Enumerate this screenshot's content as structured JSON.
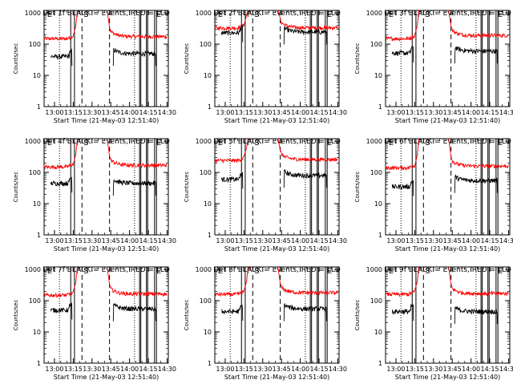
{
  "chart_data": {
    "type": "line",
    "shared": {
      "y_label": "Counts/sec",
      "x_label": "Start Time (21-May-03 12:51:40)",
      "x_ticks": [
        "13:00",
        "13:15",
        "13:30",
        "13:45",
        "14:00",
        "14:15",
        "14:30"
      ],
      "x_tick_minutes": [
        0,
        15,
        30,
        45,
        60,
        75,
        90
      ],
      "x_range_minutes": [
        -8.3,
        91
      ],
      "y_ticks": [
        "1",
        "10",
        "100",
        "1000"
      ],
      "y_tick_values": [
        1,
        10,
        100,
        1000
      ],
      "y_range": [
        1,
        1200
      ],
      "y_scale": "log",
      "x_origin": "13:00",
      "series_colors": {
        "events": "#000000",
        "lld": "#ff0000"
      },
      "marker_labels": [
        "E",
        "F",
        "S",
        "E"
      ],
      "marker_minutes": [
        -7.2,
        16,
        22,
        80
      ],
      "dotted_lines_minutes": [
        4,
        64
      ],
      "dashed_lines_minutes": [
        22,
        44
      ],
      "solid_lines_minutes": [
        13,
        16,
        68,
        69,
        73.5,
        74.5,
        80,
        81.5
      ]
    },
    "panels": [
      {
        "title": "Det 1f BLACK = Events, RED = LLD",
        "events_level": 40,
        "lld_level": 150,
        "events_post": 50,
        "lld_post": 175,
        "saa_start": 16,
        "saa_end": 44
      },
      {
        "title": "Det 2f BLACK = Events, RED = LLD",
        "events_level": 230,
        "lld_level": 330,
        "events_post": 245,
        "lld_post": 335,
        "saa_start": 16,
        "saa_end": 44
      },
      {
        "title": "Det 3f BLACK = Events, RED = LLD",
        "events_level": 52,
        "lld_level": 150,
        "events_post": 60,
        "lld_post": 190,
        "saa_start": 16,
        "saa_end": 44
      },
      {
        "title": "Det 4f BLACK = Events, RED = LLD",
        "events_level": 45,
        "lld_level": 150,
        "events_post": 45,
        "lld_post": 170,
        "saa_start": 16,
        "saa_end": 44
      },
      {
        "title": "Det 5f BLACK = Events, RED = LLD",
        "events_level": 60,
        "lld_level": 240,
        "events_post": 80,
        "lld_post": 260,
        "saa_start": 16,
        "saa_end": 44
      },
      {
        "title": "Det 6f BLACK = Events, RED = LLD",
        "events_level": 35,
        "lld_level": 140,
        "events_post": 55,
        "lld_post": 160,
        "saa_start": 16,
        "saa_end": 44
      },
      {
        "title": "Det 7f BLACK = Events, RED = LLD",
        "events_level": 50,
        "lld_level": 150,
        "events_post": 55,
        "lld_post": 165,
        "saa_start": 16,
        "saa_end": 44
      },
      {
        "title": "Det 8f BLACK = Events, RED = LLD",
        "events_level": 45,
        "lld_level": 160,
        "events_post": 55,
        "lld_post": 180,
        "saa_start": 16,
        "saa_end": 44
      },
      {
        "title": "Det 9f BLACK = Events, RED = LLD",
        "events_level": 45,
        "lld_level": 160,
        "events_post": 45,
        "lld_post": 170,
        "saa_start": 16,
        "saa_end": 44
      }
    ]
  }
}
